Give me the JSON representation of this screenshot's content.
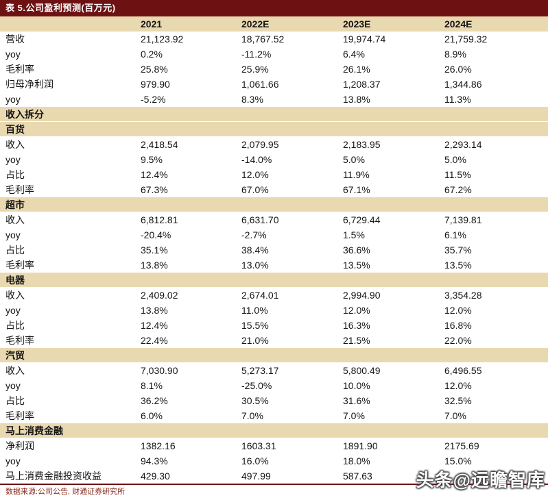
{
  "title_bar": {
    "title": "表 5.公司盈利预测(百万元)"
  },
  "table": {
    "columns": [
      "2021",
      "2022E",
      "2023E",
      "2024E"
    ],
    "rows": [
      {
        "type": "data",
        "label": "营收",
        "values": [
          "21,123.92",
          "18,767.52",
          "19,974.74",
          "21,759.32"
        ]
      },
      {
        "type": "data",
        "label": "yoy",
        "values": [
          "0.2%",
          "-11.2%",
          "6.4%",
          "8.9%"
        ]
      },
      {
        "type": "data",
        "label": "毛利率",
        "values": [
          "25.8%",
          "25.9%",
          "26.1%",
          "26.0%"
        ]
      },
      {
        "type": "data",
        "label": "归母净利润",
        "values": [
          "979.90",
          "1,061.66",
          "1,208.37",
          "1,344.86"
        ]
      },
      {
        "type": "data",
        "label": "yoy",
        "values": [
          "-5.2%",
          "8.3%",
          "13.8%",
          "11.3%"
        ]
      },
      {
        "type": "section",
        "label": "收入拆分"
      },
      {
        "type": "section",
        "label": "百货"
      },
      {
        "type": "data",
        "label": "收入",
        "values": [
          "2,418.54",
          "2,079.95",
          "2,183.95",
          "2,293.14"
        ]
      },
      {
        "type": "data",
        "label": "yoy",
        "values": [
          "9.5%",
          "-14.0%",
          "5.0%",
          "5.0%"
        ]
      },
      {
        "type": "data",
        "label": "占比",
        "values": [
          "12.4%",
          "12.0%",
          "11.9%",
          "11.5%"
        ]
      },
      {
        "type": "data",
        "label": "毛利率",
        "values": [
          "67.3%",
          "67.0%",
          "67.1%",
          "67.2%"
        ]
      },
      {
        "type": "section",
        "label": "超市"
      },
      {
        "type": "data",
        "label": "收入",
        "values": [
          "6,812.81",
          "6,631.70",
          "6,729.44",
          "7,139.81"
        ]
      },
      {
        "type": "data",
        "label": "yoy",
        "values": [
          "-20.4%",
          "-2.7%",
          "1.5%",
          "6.1%"
        ]
      },
      {
        "type": "data",
        "label": "占比",
        "values": [
          "35.1%",
          "38.4%",
          "36.6%",
          "35.7%"
        ]
      },
      {
        "type": "data",
        "label": "毛利率",
        "values": [
          "13.8%",
          "13.0%",
          "13.5%",
          "13.5%"
        ]
      },
      {
        "type": "section",
        "label": "电器"
      },
      {
        "type": "data",
        "label": "收入",
        "values": [
          "2,409.02",
          "2,674.01",
          "2,994.90",
          "3,354.28"
        ]
      },
      {
        "type": "data",
        "label": "yoy",
        "values": [
          "13.8%",
          "11.0%",
          "12.0%",
          "12.0%"
        ]
      },
      {
        "type": "data",
        "label": "占比",
        "values": [
          "12.4%",
          "15.5%",
          "16.3%",
          "16.8%"
        ]
      },
      {
        "type": "data",
        "label": "毛利率",
        "values": [
          "22.4%",
          "21.0%",
          "21.5%",
          "22.0%"
        ]
      },
      {
        "type": "section",
        "label": "汽贸"
      },
      {
        "type": "data",
        "label": "收入",
        "values": [
          "7,030.90",
          "5,273.17",
          "5,800.49",
          "6,496.55"
        ]
      },
      {
        "type": "data",
        "label": "yoy",
        "values": [
          "8.1%",
          "-25.0%",
          "10.0%",
          "12.0%"
        ]
      },
      {
        "type": "data",
        "label": "占比",
        "values": [
          "36.2%",
          "30.5%",
          "31.6%",
          "32.5%"
        ]
      },
      {
        "type": "data",
        "label": "毛利率",
        "values": [
          "6.0%",
          "7.0%",
          "7.0%",
          "7.0%"
        ]
      },
      {
        "type": "section",
        "label": "马上消费金融"
      },
      {
        "type": "data",
        "label": "净利润",
        "values": [
          "1382.16",
          "1603.31",
          "1891.90",
          "2175.69"
        ]
      },
      {
        "type": "data",
        "label": "yoy",
        "values": [
          "94.3%",
          "16.0%",
          "18.0%",
          "15.0%"
        ]
      },
      {
        "type": "data",
        "label": "马上消费金融投资收益",
        "values": [
          "429.30",
          "497.99",
          "587.63",
          ""
        ]
      }
    ],
    "footer_source": "数据来源:公司公告, 财通证券研究所"
  },
  "watermark": {
    "text": "头条@远瞻智库"
  },
  "colors": {
    "title_bar_bg": "#6d1112",
    "title_bar_text": "#ffffff",
    "band_beige": "#e9d9b1",
    "body_text": "#141414",
    "source_text": "#8a2a1e",
    "footer_rule": "#6d1112",
    "watermark_text": "#ffffff"
  }
}
